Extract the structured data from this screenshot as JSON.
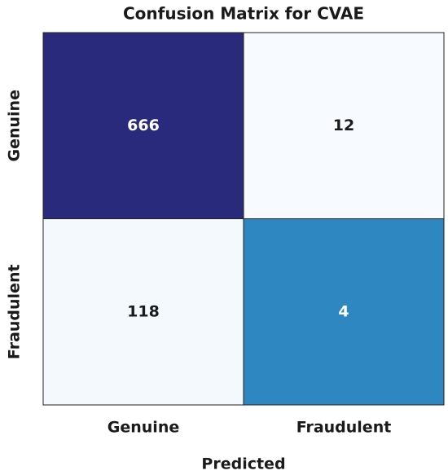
{
  "chart_data": {
    "type": "heatmap",
    "title": "Confusion Matrix for CVAE",
    "xlabel": "Predicted",
    "x_categories": [
      "Genuine",
      "Fraudulent"
    ],
    "y_categories": [
      "Genuine",
      "Fraudulent"
    ],
    "values": [
      [
        666,
        12
      ],
      [
        118,
        4
      ]
    ],
    "colors": [
      [
        "#2a2a7c",
        "#f7fbff"
      ],
      [
        "#f4f9fe",
        "#2e87c0"
      ]
    ]
  }
}
